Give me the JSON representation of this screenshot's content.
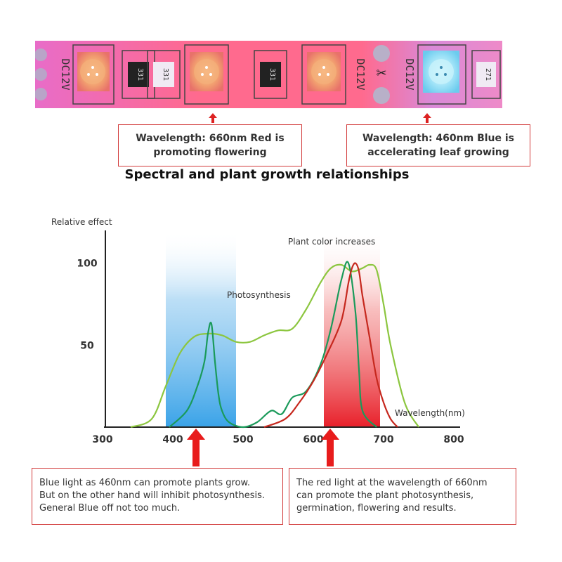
{
  "led_strip": {
    "voltage_label": "DC12V",
    "resistor_codes": [
      "331",
      "331",
      "331",
      "271"
    ],
    "colors": {
      "red_led": "#f06a6a",
      "blue_led": "#8fd9f5",
      "strip": "#ff7aa8"
    }
  },
  "callouts": {
    "red": "Wavelength: 660nm Red is\npromoting flowering",
    "blue": "Wavelength: 460nm Blue is\naccelerating leaf growing"
  },
  "heading": "Spectral and plant growth relationships",
  "chart_data": {
    "type": "line",
    "ylabel": "Relative effect",
    "xlabel": "Wavelength(nm)",
    "x_ticks": [
      300,
      400,
      500,
      600,
      700,
      800
    ],
    "y_ticks": [
      50,
      100
    ],
    "xlim": [
      300,
      850
    ],
    "ylim": [
      0,
      120
    ],
    "annotations": {
      "photosynthesis": "Photosynthesis",
      "plant_color": "Plant color increases"
    },
    "bands": [
      {
        "range": [
          390,
          490
        ],
        "color": "#4aa8e8"
      },
      {
        "range": [
          615,
          695
        ],
        "color": "#e82a2a"
      }
    ],
    "series": [
      {
        "color": "#8cc63f",
        "x": [
          340,
          370,
          390,
          410,
          430,
          450,
          470,
          490,
          510,
          530,
          550,
          570,
          590,
          610,
          625,
          640,
          655,
          670,
          680,
          690,
          700,
          710,
          730,
          750
        ],
        "values": [
          0,
          5,
          25,
          45,
          55,
          57,
          56,
          52,
          52,
          56,
          59,
          60,
          72,
          88,
          97,
          99,
          95,
          97,
          99,
          96,
          75,
          50,
          15,
          0
        ]
      },
      {
        "color": "#1a9a5a",
        "x": [
          395,
          420,
          435,
          445,
          450,
          455,
          460,
          465,
          470,
          480,
          500,
          520,
          540,
          555,
          570,
          590,
          610,
          625,
          640,
          650,
          660,
          665,
          670,
          690
        ],
        "values": [
          0,
          10,
          25,
          40,
          57,
          63,
          40,
          20,
          10,
          3,
          0,
          3,
          10,
          8,
          18,
          22,
          38,
          60,
          90,
          100,
          70,
          35,
          10,
          0
        ]
      },
      {
        "color": "#c6281e",
        "x": [
          530,
          560,
          580,
          600,
          620,
          640,
          650,
          655,
          660,
          665,
          670,
          680,
          690,
          700,
          710,
          720
        ],
        "values": [
          0,
          5,
          15,
          28,
          45,
          65,
          88,
          97,
          100,
          95,
          80,
          55,
          30,
          15,
          5,
          0
        ]
      }
    ]
  },
  "notes": {
    "blue": "Blue light as 460nm can promote plants grow.\nBut on the other hand will inhibit photosynthesis.\nGeneral Blue off not too much.",
    "red": "The red light at the wavelength of 660nm\ncan promote the plant photosynthesis,\ngermination, flowering and results."
  }
}
